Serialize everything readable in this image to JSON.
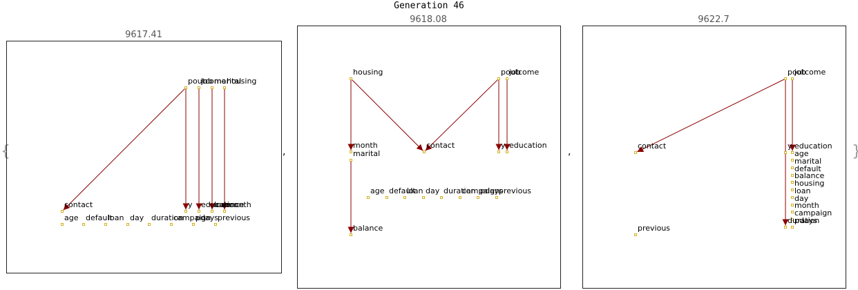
{
  "title": "Generation 46",
  "separators": [
    ",",
    ","
  ],
  "braces": [
    "{",
    "}"
  ],
  "panels": [
    {
      "score": "9617.41",
      "nodes": [
        {
          "id": "poutcome",
          "label": "poutcome"
        },
        {
          "id": "job",
          "label": "job"
        },
        {
          "id": "marital",
          "label": "marital"
        },
        {
          "id": "housing",
          "label": "housing"
        },
        {
          "id": "contact",
          "label": "contact"
        },
        {
          "id": "y",
          "label": "y"
        },
        {
          "id": "education",
          "label": "education"
        },
        {
          "id": "balance",
          "label": "balance"
        },
        {
          "id": "loan2",
          "label": "loan"
        },
        {
          "id": "month",
          "label": "month"
        },
        {
          "id": "age",
          "label": "age"
        },
        {
          "id": "default",
          "label": "default"
        },
        {
          "id": "loan",
          "label": "loan"
        },
        {
          "id": "day",
          "label": "day"
        },
        {
          "id": "duration",
          "label": "duration"
        },
        {
          "id": "campaign",
          "label": "campaign"
        },
        {
          "id": "pdays",
          "label": "pdays"
        },
        {
          "id": "previous",
          "label": "previous"
        }
      ],
      "edges": [
        [
          "poutcome",
          "contact"
        ],
        [
          "poutcome",
          "y"
        ],
        [
          "job",
          "education"
        ],
        [
          "marital",
          "balance"
        ],
        [
          "housing",
          "month"
        ]
      ]
    },
    {
      "score": "9618.08",
      "nodes": [
        {
          "id": "housing",
          "label": "housing"
        },
        {
          "id": "poutcome",
          "label": "poutcome"
        },
        {
          "id": "job",
          "label": "job"
        },
        {
          "id": "month",
          "label": "month"
        },
        {
          "id": "marital",
          "label": "marital"
        },
        {
          "id": "contact",
          "label": "contact"
        },
        {
          "id": "y",
          "label": "y"
        },
        {
          "id": "education",
          "label": "education"
        },
        {
          "id": "age",
          "label": "age"
        },
        {
          "id": "default",
          "label": "default"
        },
        {
          "id": "loan",
          "label": "loan"
        },
        {
          "id": "day",
          "label": "day"
        },
        {
          "id": "duration",
          "label": "duration"
        },
        {
          "id": "campaign",
          "label": "campaign"
        },
        {
          "id": "pdays",
          "label": "pdays"
        },
        {
          "id": "previous",
          "label": "previous"
        },
        {
          "id": "balance",
          "label": "balance"
        }
      ],
      "edges": [
        [
          "housing",
          "month"
        ],
        [
          "housing",
          "contact"
        ],
        [
          "poutcome",
          "contact"
        ],
        [
          "poutcome",
          "y"
        ],
        [
          "job",
          "education"
        ],
        [
          "marital",
          "balance"
        ]
      ]
    },
    {
      "score": "9622.7",
      "nodes": [
        {
          "id": "poutcome",
          "label": "poutcome"
        },
        {
          "id": "job",
          "label": "job"
        },
        {
          "id": "contact",
          "label": "contact"
        },
        {
          "id": "y",
          "label": "y"
        },
        {
          "id": "education",
          "label": "education"
        },
        {
          "id": "age",
          "label": "age"
        },
        {
          "id": "marital",
          "label": "marital"
        },
        {
          "id": "default",
          "label": "default"
        },
        {
          "id": "balance",
          "label": "balance"
        },
        {
          "id": "housing",
          "label": "housing"
        },
        {
          "id": "loan",
          "label": "loan"
        },
        {
          "id": "day",
          "label": "day"
        },
        {
          "id": "month",
          "label": "month"
        },
        {
          "id": "campaign",
          "label": "campaign"
        },
        {
          "id": "duration",
          "label": "duration"
        },
        {
          "id": "pdays",
          "label": "pdays"
        },
        {
          "id": "previous",
          "label": "previous"
        }
      ],
      "edges": [
        [
          "poutcome",
          "contact"
        ],
        [
          "poutcome",
          "duration"
        ],
        [
          "job",
          "education"
        ]
      ]
    }
  ]
}
